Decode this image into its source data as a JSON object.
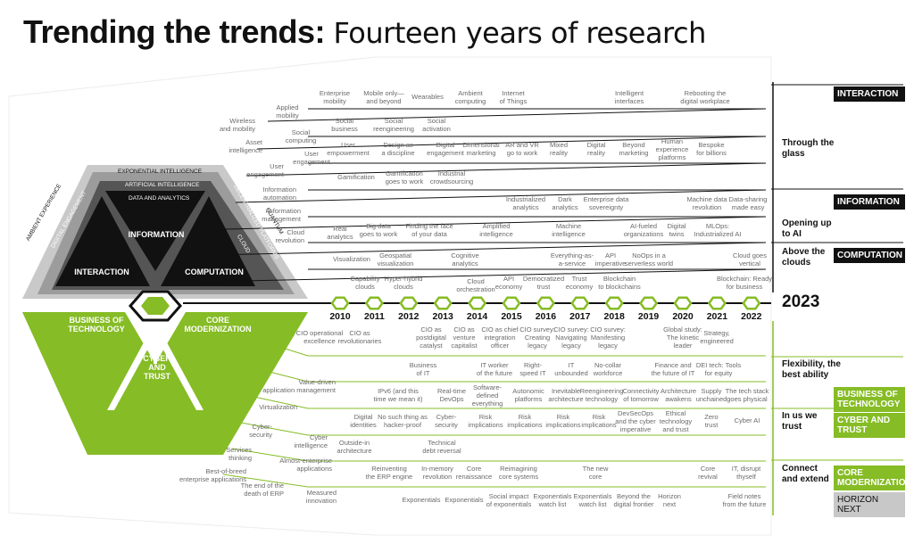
{
  "title": {
    "bold": "Trending the trends:",
    "rest": "Fourteen years of research"
  },
  "years": [
    "2010",
    "2011",
    "2012",
    "2013",
    "2014",
    "2015",
    "2016",
    "2017",
    "2018",
    "2019",
    "2020",
    "2021",
    "2022"
  ],
  "current_year": "2023",
  "hex": {
    "bands": [
      "EXPONENTIAL INTELLIGENCE",
      "ARTIFICIAL INTELLIGENCE",
      "DATA AND ANALYTICS"
    ],
    "left_bands": [
      "AMBIENT EXPERIENCE",
      "EXTENDED REALITY",
      "DIGITAL ENGAGEMENT"
    ],
    "right_bands": [
      "QUANTUM",
      "DECENTRALIZED PLATFORMS",
      "CLOUD"
    ],
    "information": "INFORMATION",
    "interaction": "INTERACTION",
    "computation": "COMPUTATION",
    "business": "BUSINESS OF\nTECHNOLOGY",
    "core": "CORE\nMODERNIZATION",
    "cyber": "CYBER\nAND\nTRUST"
  },
  "right_panel": {
    "tags": [
      {
        "label": "INTERACTION",
        "style": "dark"
      },
      {
        "label": "INFORMATION",
        "style": "dark"
      },
      {
        "label": "COMPUTATION",
        "style": "dark"
      },
      {
        "label": "BUSINESS OF TECHNOLOGY",
        "style": "green"
      },
      {
        "label": "CYBER AND TRUST",
        "style": "green"
      },
      {
        "label": "CORE MODERNIZATION",
        "style": "green"
      },
      {
        "label": "HORIZON NEXT",
        "style": "gray"
      }
    ],
    "headings": [
      "Through the glass",
      "Opening up to AI",
      "Above the clouds",
      "Flexibility, the best ability",
      "In us we trust",
      "Connect and extend"
    ]
  },
  "top_labels": [
    "Enterprise\nmobility",
    "Mobile only—\nand beyond",
    "Wearables",
    "Ambient\ncomputing",
    "Internet\nof Things",
    "Intelligent\ninterfaces",
    "Rebooting the\ndigital workplace",
    "Applied\nmobility",
    "Social\nbusiness",
    "Social\nreengineering",
    "Social\nactivation",
    "Social\ncomputing",
    "User\nempowerment",
    "Design as\na discipline",
    "Digital\nengagement",
    "Dimensional\nmarketing",
    "AR and VR\ngo to work",
    "Mixed\nreality",
    "Digital\nreality",
    "Beyond\nmarketing",
    "Human\nexperience\nplatforms",
    "Bespoke\nfor billions",
    "User\nengagement",
    "Gamification",
    "Gamification\ngoes to work",
    "Industrial\ncrowdsourcing",
    "Industrialized\nanalytics",
    "Dark\nanalytics",
    "Enterprise data\nsovereignty",
    "Machine data\nrevolution",
    "Data-sharing\nmade easy",
    "Real\nanalytics",
    "Big data\ngoes to work",
    "Finding the face\nof your data",
    "Amplified\nintelligence",
    "Machine\nintelligence",
    "AI-fueled\norganizations",
    "Digital\ntwins",
    "MLOps:\nIndustrialized AI",
    "Visualization",
    "Geospatial\nvisualization",
    "Cognitive\nanalytics",
    "Everything-as-\na-service",
    "API\nimperative",
    "NoOps in a\nserverless world",
    "Cloud goes\nvertical",
    "Capability\nclouds",
    "Hyper-hybrid\nclouds",
    "Cloud\norchestration",
    "API\neconomy",
    "Democratized\ntrust",
    "Trust\neconomy",
    "Blockchain\nto blockchains",
    "Blockchain: Ready\nfor business"
  ],
  "top_left_labels": [
    "Wireless\nand mobility",
    "Asset\nintelligence",
    "User\nengagement",
    "Information\nautomation",
    "Information\nmanagement",
    "Cloud\nrevolution"
  ],
  "bottom_labels": [
    "CIO operational\nexcellence",
    "CIO as\nrevolutionaries",
    "CIO as\npostdigital\ncatalyst",
    "CIO as\nventure\ncapitalist",
    "CIO as chief\nintegration\nofficer",
    "CIO survey:\nCreating\nlegacy",
    "CIO survey:\nNavigating\nlegacy",
    "CIO survey:\nManifesting\nlegacy",
    "Global study:\nThe kinetic\nleader",
    "Strategy,\nengineered",
    "Business\nof IT",
    "IT worker\nof the future",
    "Right-\nspeed IT",
    "IT\nunbounded",
    "No-collar\nworkforce",
    "Finance and\nthe future of IT",
    "DEI tech: Tools\nfor equity",
    "IPv6 (and this\ntime we mean it)",
    "Real-time\nDevOps",
    "Software-\ndefined\neverything",
    "Autonomic\nplatforms",
    "Inevitable\narchitecture",
    "Reengineering\ntechnology",
    "Connectivity\nof tomorrow",
    "Architecture\nawakens",
    "Supply\nunchained",
    "The tech stack\ngoes physical",
    "Digital\nidentities",
    "No such thing as\nhacker-proof",
    "Cyber-\nsecurity",
    "Risk\nimplications",
    "Risk\nimplications",
    "Risk\nimplications",
    "Risk\nimplications",
    "DevSecOps\nand the cyber\nimperative",
    "Ethical\ntechnology\nand trust",
    "Zero\ntrust",
    "Cyber AI",
    "Outside-in\narchitecture",
    "Technical\ndebt reversal",
    "Reinventing\nthe ERP engine",
    "In-memory\nrevolution",
    "Core\nrenaissance",
    "Reimagining\ncore systems",
    "The new\ncore",
    "Core\nrevival",
    "IT, disrupt\nthyself",
    "Exponentials",
    "Exponentials",
    "Social impact\nof exponentials",
    "Exponentials\nwatch list",
    "Exponentials\nwatch list",
    "Beyond the\ndigital frontier",
    "Horizon\nnext",
    "Field notes\nfrom the future"
  ],
  "bottom_left_labels": [
    "Value-driven\napplication management",
    "Virtualization",
    "Cyber-\nsecurity",
    "Cyber\nintelligence",
    "Services\nthinking",
    "Almost-enterprise\napplications",
    "Best-of-breed\nenterprise applications",
    "The end of the\ndeath of ERP",
    "Measured\ninnovation"
  ],
  "colors": {
    "green": "#86bc25",
    "dark": "#111111",
    "gray": "#c8c8c8"
  }
}
